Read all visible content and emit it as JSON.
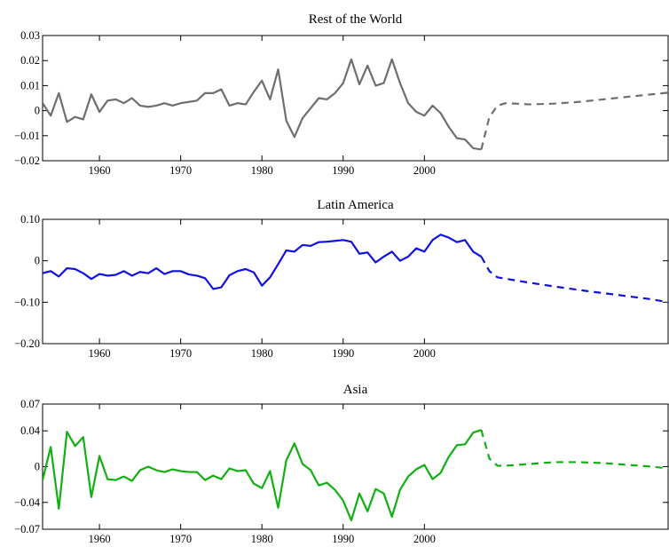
{
  "chart_data": [
    {
      "type": "line",
      "title": "Rest of the World",
      "xlabel": "",
      "ylabel": "",
      "xlim": [
        1953,
        2030
      ],
      "ylim": [
        -0.02,
        0.03
      ],
      "xticks": [
        1960,
        1970,
        1980,
        1990,
        2000
      ],
      "xtick_labels": [
        "1960",
        "1970",
        "1980",
        "1990",
        "2000"
      ],
      "yticks": [
        -0.02,
        -0.01,
        0,
        0.01,
        0.02,
        0.03
      ],
      "ytick_labels": [
        "−0.02",
        "−0.01",
        "0",
        "0.01",
        "0.02",
        "0.03"
      ],
      "grid": false,
      "color": "#6e6e6e",
      "series": [
        {
          "style": "solid",
          "x": [
            1953,
            1954,
            1955,
            1956,
            1957,
            1958,
            1959,
            1960,
            1961,
            1962,
            1963,
            1964,
            1965,
            1966,
            1967,
            1968,
            1969,
            1970,
            1971,
            1972,
            1973,
            1974,
            1975,
            1976,
            1977,
            1978,
            1979,
            1980,
            1981,
            1982,
            1983,
            1984,
            1985,
            1986,
            1987,
            1988,
            1989,
            1990,
            1991,
            1992,
            1993,
            1994,
            1995,
            1996,
            1997,
            1998,
            1999,
            2000,
            2001,
            2002,
            2003,
            2004,
            2005,
            2006,
            2007
          ],
          "y": [
            0.003,
            -0.002,
            0.007,
            -0.0045,
            -0.0025,
            -0.0035,
            0.0065,
            -0.0005,
            0.004,
            0.0045,
            0.003,
            0.005,
            0.002,
            0.0015,
            0.002,
            0.003,
            0.002,
            0.003,
            0.0035,
            0.004,
            0.007,
            0.007,
            0.0085,
            0.002,
            0.003,
            0.0025,
            0.0075,
            0.012,
            0.0045,
            0.0165,
            -0.004,
            -0.0105,
            -0.003,
            0.001,
            0.005,
            0.0045,
            0.007,
            0.011,
            0.0205,
            0.0105,
            0.018,
            0.01,
            0.011,
            0.0205,
            0.011,
            0.003,
            -0.0005,
            -0.002,
            0.002,
            -0.001,
            -0.0065,
            -0.011,
            -0.0115,
            -0.015,
            -0.0155
          ]
        },
        {
          "style": "dashed",
          "x": [
            2007,
            2008,
            2009,
            2010,
            2013,
            2016,
            2019,
            2022,
            2025,
            2028,
            2030
          ],
          "y": [
            -0.0155,
            -0.0025,
            0.002,
            0.003,
            0.0025,
            0.0028,
            0.0035,
            0.0045,
            0.0055,
            0.0065,
            0.0072
          ]
        }
      ]
    },
    {
      "type": "line",
      "title": "Latin America",
      "xlabel": "",
      "ylabel": "",
      "xlim": [
        1953,
        2030
      ],
      "ylim": [
        -0.2,
        0.1
      ],
      "xticks": [
        1960,
        1970,
        1980,
        1990,
        2000
      ],
      "xtick_labels": [
        "1960",
        "1970",
        "1980",
        "1990",
        "2000"
      ],
      "yticks": [
        -0.2,
        -0.1,
        0,
        0.1
      ],
      "ytick_labels": [
        "−0.20",
        "−0.10",
        "0",
        "0.10"
      ],
      "grid": false,
      "color": "#1010e0",
      "series": [
        {
          "style": "solid",
          "x": [
            1953,
            1954,
            1955,
            1956,
            1957,
            1958,
            1959,
            1960,
            1961,
            1962,
            1963,
            1964,
            1965,
            1966,
            1967,
            1968,
            1969,
            1970,
            1971,
            1972,
            1973,
            1974,
            1975,
            1976,
            1977,
            1978,
            1979,
            1980,
            1981,
            1982,
            1983,
            1984,
            1985,
            1986,
            1987,
            1988,
            1989,
            1990,
            1991,
            1992,
            1993,
            1994,
            1995,
            1996,
            1997,
            1998,
            1999,
            2000,
            2001,
            2002,
            2003,
            2004,
            2005,
            2006,
            2007
          ],
          "y": [
            -0.03,
            -0.025,
            -0.038,
            -0.018,
            -0.02,
            -0.03,
            -0.044,
            -0.032,
            -0.036,
            -0.034,
            -0.025,
            -0.036,
            -0.027,
            -0.03,
            -0.018,
            -0.032,
            -0.025,
            -0.025,
            -0.033,
            -0.036,
            -0.042,
            -0.068,
            -0.064,
            -0.035,
            -0.025,
            -0.02,
            -0.028,
            -0.06,
            -0.04,
            -0.008,
            0.025,
            0.022,
            0.038,
            0.036,
            0.045,
            0.046,
            0.048,
            0.05,
            0.046,
            0.017,
            0.02,
            -0.004,
            0.01,
            0.022,
            0.0,
            0.01,
            0.03,
            0.022,
            0.05,
            0.063,
            0.056,
            0.045,
            0.05,
            0.022,
            0.01
          ]
        },
        {
          "style": "dashed",
          "x": [
            2007,
            2008,
            2009,
            2012,
            2016,
            2020,
            2024,
            2028,
            2030
          ],
          "y": [
            0.01,
            -0.025,
            -0.04,
            -0.05,
            -0.062,
            -0.073,
            -0.083,
            -0.093,
            -0.1
          ]
        }
      ]
    },
    {
      "type": "line",
      "title": "Asia",
      "xlabel": "",
      "ylabel": "",
      "xlim": [
        1953,
        2030
      ],
      "ylim": [
        -0.07,
        0.07
      ],
      "xticks": [
        1960,
        1970,
        1980,
        1990,
        2000
      ],
      "xtick_labels": [
        "1960",
        "1970",
        "1980",
        "1990",
        "2000"
      ],
      "yticks": [
        -0.07,
        -0.04,
        0,
        0.04,
        0.07
      ],
      "ytick_labels": [
        "−0.07",
        "−0.04",
        "0",
        "0.04",
        "0.07"
      ],
      "grid": false,
      "color": "#10b010",
      "series": [
        {
          "style": "solid",
          "x": [
            1953,
            1954,
            1955,
            1956,
            1957,
            1958,
            1959,
            1960,
            1961,
            1962,
            1963,
            1964,
            1965,
            1966,
            1967,
            1968,
            1969,
            1970,
            1971,
            1972,
            1973,
            1974,
            1975,
            1976,
            1977,
            1978,
            1979,
            1980,
            1981,
            1982,
            1983,
            1984,
            1985,
            1986,
            1987,
            1988,
            1989,
            1990,
            1991,
            1992,
            1993,
            1994,
            1995,
            1996,
            1997,
            1998,
            1999,
            2000,
            2001,
            2002,
            2003,
            2004,
            2005,
            2006,
            2007
          ],
          "y": [
            -0.015,
            0.022,
            -0.047,
            0.039,
            0.023,
            0.033,
            -0.034,
            0.012,
            -0.014,
            -0.015,
            -0.011,
            -0.016,
            -0.004,
            0.0,
            -0.004,
            -0.006,
            -0.003,
            -0.005,
            -0.006,
            -0.006,
            -0.015,
            -0.01,
            -0.014,
            -0.002,
            -0.005,
            -0.004,
            -0.019,
            -0.024,
            -0.005,
            -0.046,
            0.007,
            0.026,
            0.003,
            -0.004,
            -0.021,
            -0.018,
            -0.026,
            -0.038,
            -0.06,
            -0.03,
            -0.05,
            -0.025,
            -0.03,
            -0.056,
            -0.026,
            -0.011,
            -0.003,
            0.002,
            -0.014,
            -0.007,
            0.011,
            0.024,
            0.025,
            0.038,
            0.041
          ]
        },
        {
          "style": "dashed",
          "x": [
            2007,
            2008,
            2009,
            2010,
            2013,
            2016,
            2019,
            2022,
            2025,
            2028,
            2030
          ],
          "y": [
            0.041,
            0.009,
            0.001,
            0.001,
            0.003,
            0.005,
            0.005,
            0.004,
            0.002,
            0.0,
            -0.002
          ]
        }
      ]
    }
  ]
}
